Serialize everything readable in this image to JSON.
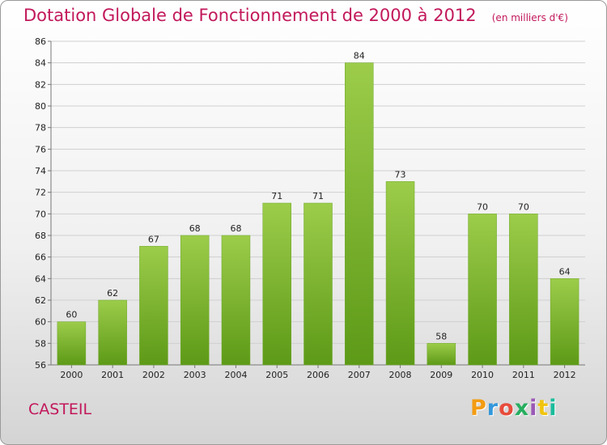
{
  "header": {
    "title": "Dotation Globale de Fonctionnement de 2000 à 2012",
    "subtitle": "(en milliers d'€)"
  },
  "footer": {
    "commune": "CASTEIL",
    "logo_text": "Proxiti",
    "logo_colors": [
      "#f39c12",
      "#3498db",
      "#e74c3c",
      "#27ae60",
      "#9b59b6",
      "#f1c40f",
      "#1abc9c"
    ]
  },
  "chart_data": {
    "type": "bar",
    "categories": [
      "2000",
      "2001",
      "2002",
      "2003",
      "2004",
      "2005",
      "2006",
      "2007",
      "2008",
      "2009",
      "2010",
      "2011",
      "2012"
    ],
    "values": [
      60,
      62,
      67,
      68,
      68,
      71,
      71,
      84,
      73,
      58,
      70,
      70,
      64
    ],
    "ylim": [
      56,
      86
    ],
    "yticks": [
      56,
      58,
      60,
      62,
      64,
      66,
      68,
      70,
      72,
      74,
      76,
      78,
      80,
      82,
      84,
      86
    ],
    "grid": true,
    "bar_color_top": "#9ccc4a",
    "bar_color_bottom": "#5d9a17"
  }
}
